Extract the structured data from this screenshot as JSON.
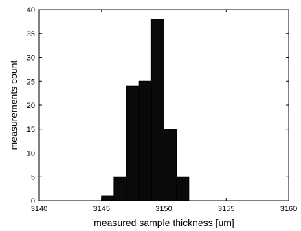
{
  "chart_data": {
    "type": "bar",
    "title": "",
    "xlabel": "measured sample thickness [um]",
    "ylabel": "measurements count",
    "xlim": [
      3140,
      3160
    ],
    "ylim": [
      0,
      40
    ],
    "xticks": [
      3140,
      3145,
      3150,
      3155,
      3160
    ],
    "yticks": [
      0,
      5,
      10,
      15,
      20,
      25,
      30,
      35,
      40
    ],
    "bins": [
      {
        "from": 3145.0,
        "to": 3146.0,
        "count": 1
      },
      {
        "from": 3146.0,
        "to": 3147.0,
        "count": 5
      },
      {
        "from": 3147.0,
        "to": 3148.0,
        "count": 24
      },
      {
        "from": 3148.0,
        "to": 3149.0,
        "count": 25
      },
      {
        "from": 3149.0,
        "to": 3150.0,
        "count": 38
      },
      {
        "from": 3150.0,
        "to": 3151.0,
        "count": 15
      },
      {
        "from": 3151.0,
        "to": 3152.0,
        "count": 5
      }
    ],
    "bar_color": "#0a0a0a",
    "grid": false,
    "legend": false
  }
}
